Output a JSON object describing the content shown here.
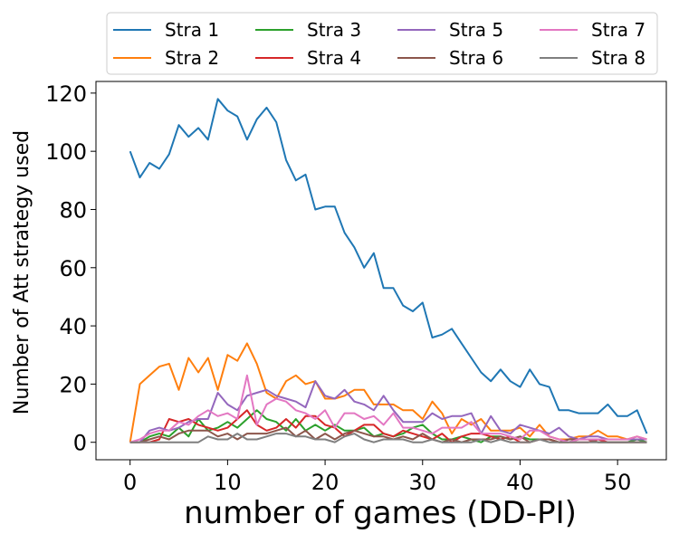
{
  "chart_data": {
    "type": "line",
    "xlabel": "number of games (DD-PI)",
    "ylabel": "Number of Att strategy used",
    "xlim": [
      -3.5,
      55
    ],
    "ylim": [
      -6,
      124
    ],
    "xticks": [
      0,
      10,
      20,
      30,
      40,
      50
    ],
    "yticks": [
      0,
      20,
      40,
      60,
      80,
      100,
      120
    ],
    "grid": false,
    "legend_position": "top",
    "x": [
      0,
      1,
      2,
      3,
      4,
      5,
      6,
      7,
      8,
      9,
      10,
      11,
      12,
      13,
      14,
      15,
      16,
      17,
      18,
      19,
      20,
      21,
      22,
      23,
      24,
      25,
      26,
      27,
      28,
      29,
      30,
      31,
      32,
      33,
      34,
      35,
      36,
      37,
      38,
      39,
      40,
      41,
      42,
      43,
      44,
      45,
      46,
      47,
      48,
      49,
      50,
      51,
      52,
      53
    ],
    "series": [
      {
        "name": "Stra 1",
        "color": "#1f77b4",
        "values": [
          100,
          91,
          96,
          94,
          99,
          109,
          105,
          108,
          104,
          118,
          114,
          112,
          104,
          111,
          115,
          110,
          97,
          90,
          92,
          80,
          81,
          81,
          72,
          67,
          60,
          65,
          53,
          53,
          47,
          45,
          48,
          36,
          37,
          39,
          34,
          29,
          24,
          21,
          25,
          21,
          19,
          25,
          20,
          19,
          11,
          11,
          10,
          10,
          10,
          13,
          9,
          9,
          11,
          3
        ]
      },
      {
        "name": "Stra 2",
        "color": "#ff7f0e",
        "values": [
          0,
          20,
          23,
          26,
          27,
          18,
          29,
          24,
          29,
          18,
          30,
          28,
          34,
          27,
          17,
          15,
          21,
          23,
          20,
          21,
          15,
          15,
          16,
          18,
          18,
          13,
          13,
          13,
          11,
          11,
          8,
          14,
          10,
          3,
          8,
          6,
          8,
          4,
          4,
          4,
          5,
          2,
          6,
          2,
          1,
          1,
          2,
          2,
          4,
          2,
          2,
          1,
          2,
          1
        ]
      },
      {
        "name": "Stra 3",
        "color": "#2ca02c",
        "values": [
          0,
          0,
          2,
          3,
          2,
          5,
          2,
          8,
          4,
          5,
          7,
          5,
          8,
          11,
          8,
          7,
          4,
          8,
          4,
          6,
          4,
          6,
          4,
          4,
          5,
          2,
          3,
          2,
          3,
          5,
          6,
          3,
          1,
          1,
          2,
          1,
          0,
          2,
          2,
          1,
          2,
          1,
          1,
          1,
          0,
          0,
          1,
          1,
          0,
          0,
          0,
          0,
          1,
          0
        ]
      },
      {
        "name": "Stra 4",
        "color": "#d62728",
        "values": [
          0,
          0,
          0,
          1,
          8,
          7,
          8,
          6,
          5,
          4,
          5,
          8,
          11,
          6,
          4,
          5,
          8,
          5,
          9,
          9,
          6,
          5,
          2,
          4,
          6,
          6,
          3,
          2,
          4,
          3,
          2,
          1,
          3,
          0,
          2,
          3,
          3,
          2,
          1,
          2,
          0,
          0,
          1,
          1,
          0,
          0,
          0,
          0,
          1,
          0,
          0,
          0,
          0,
          0
        ]
      },
      {
        "name": "Stra 5",
        "color": "#9467bd",
        "values": [
          0,
          0,
          4,
          5,
          4,
          5,
          7,
          8,
          8,
          17,
          13,
          11,
          16,
          17,
          18,
          16,
          15,
          14,
          12,
          21,
          16,
          15,
          18,
          14,
          13,
          11,
          16,
          11,
          7,
          7,
          7,
          10,
          8,
          9,
          9,
          10,
          3,
          9,
          4,
          3,
          6,
          5,
          4,
          3,
          5,
          2,
          1,
          2,
          2,
          1,
          1,
          1,
          1,
          1
        ]
      },
      {
        "name": "Stra 6",
        "color": "#8c564b",
        "values": [
          0,
          0,
          1,
          2,
          1,
          3,
          4,
          4,
          4,
          2,
          3,
          1,
          3,
          3,
          3,
          4,
          5,
          2,
          4,
          1,
          3,
          1,
          3,
          4,
          3,
          2,
          2,
          1,
          2,
          1,
          3,
          1,
          0,
          1,
          0,
          1,
          1,
          1,
          2,
          1,
          2,
          0,
          1,
          1,
          0,
          1,
          1,
          1,
          0,
          0,
          0,
          0,
          0,
          0
        ]
      },
      {
        "name": "Stra 7",
        "color": "#e377c2",
        "values": [
          0,
          1,
          3,
          4,
          4,
          7,
          6,
          9,
          11,
          9,
          10,
          8,
          23,
          6,
          13,
          15,
          14,
          11,
          10,
          8,
          11,
          5,
          10,
          10,
          8,
          9,
          6,
          10,
          5,
          5,
          4,
          3,
          5,
          5,
          5,
          7,
          3,
          3,
          3,
          2,
          1,
          4,
          4,
          2,
          1,
          0,
          1,
          1,
          1,
          1,
          1,
          1,
          2,
          1
        ]
      },
      {
        "name": "Stra 8",
        "color": "#7f7f7f",
        "values": [
          0,
          0,
          0,
          0,
          0,
          0,
          0,
          0,
          2,
          1,
          1,
          3,
          1,
          1,
          2,
          3,
          3,
          2,
          2,
          1,
          1,
          0,
          2,
          3,
          1,
          0,
          1,
          1,
          1,
          0,
          0,
          1,
          0,
          0,
          0,
          0,
          1,
          0,
          1,
          0,
          0,
          0,
          1,
          0,
          0,
          0,
          0,
          0,
          0,
          0,
          0,
          0,
          0,
          0
        ]
      }
    ]
  }
}
